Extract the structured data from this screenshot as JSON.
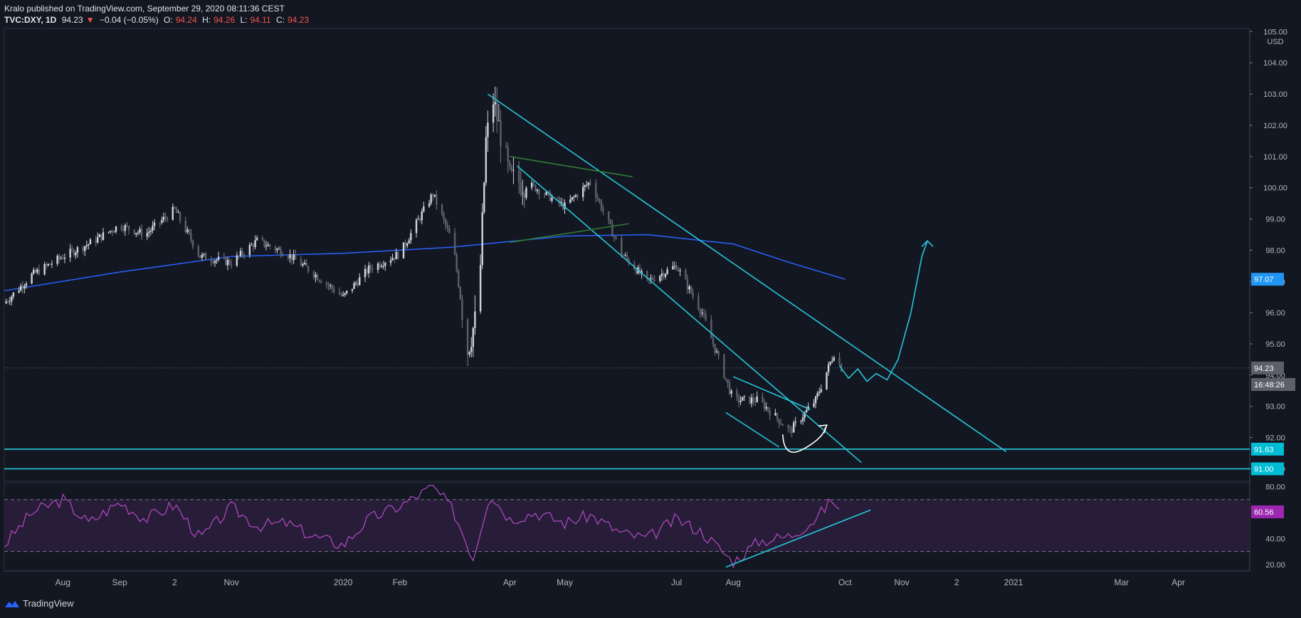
{
  "header": {
    "line1": "Kralo published on TradingView.com, September 29, 2020 08:11:36 CEST",
    "symbol": "TVC:DXY, 1D",
    "last": "94.23",
    "change": "−0.04 (−0.05%)",
    "open_label": "O:",
    "open": "94.24",
    "high_label": "H:",
    "high": "94.26",
    "low_label": "L:",
    "low": "94.11",
    "close_label": "C:",
    "close": "94.23"
  },
  "footer": {
    "brand": "TradingView"
  },
  "colors": {
    "background": "#131722",
    "candle": "#d1d4dc",
    "trendline": "#26c6da",
    "ma": "#2962ff",
    "rsi": "#ab47bc",
    "green_line": "#2e7d32"
  },
  "chart_data": [
    {
      "type": "line",
      "title": "",
      "currency": "USD",
      "y_ticks": [
        "105.00",
        "104.00",
        "103.00",
        "102.00",
        "101.00",
        "100.00",
        "99.00",
        "98.00",
        "97.00",
        "96.00",
        "95.00",
        "94.00",
        "93.00",
        "92.00",
        "91.00"
      ],
      "ylim": [
        90.6,
        105.1
      ],
      "x_ticks": [
        "Aug",
        "Sep",
        "2",
        "Nov",
        "2020",
        "Feb",
        "Apr",
        "May",
        "Jul",
        "Aug",
        "Oct",
        "Nov",
        "2",
        "2021",
        "Mar",
        "Apr"
      ],
      "xlim": [
        "2019-06-30",
        "2021-05-10"
      ],
      "price_labels": [
        {
          "text": "97.07",
          "value": 97.07,
          "color": "#2196f3"
        },
        {
          "text": "94.23",
          "value": 94.23,
          "color": "#5d606b"
        },
        {
          "text": "16:48:26",
          "value": 93.7,
          "color": "#5d606b"
        },
        {
          "text": "91.63",
          "value": 91.63,
          "color": "#00bcd4"
        },
        {
          "text": "91.00",
          "value": 91.0,
          "color": "#00bcd4"
        }
      ],
      "series": [
        {
          "name": "",
          "x": [
            "2019-06-30",
            "2019-07-15",
            "2019-08-01",
            "2019-08-15",
            "2019-09-01",
            "2019-09-15",
            "2019-10-01",
            "2019-10-15",
            "2019-11-01",
            "2019-11-15",
            "2019-12-01",
            "2019-12-15",
            "2020-01-01",
            "2020-01-15",
            "2020-02-01",
            "2020-02-19",
            "2020-03-01",
            "2020-03-09",
            "2020-03-15",
            "2020-03-19",
            "2020-03-23",
            "2020-04-01",
            "2020-04-15",
            "2020-05-01",
            "2020-05-15",
            "2020-06-01",
            "2020-06-15",
            "2020-07-01",
            "2020-07-15",
            "2020-08-01",
            "2020-08-15",
            "2020-09-01",
            "2020-09-15",
            "2020-09-25",
            "2020-09-29"
          ],
          "values": [
            96.3,
            97.2,
            97.8,
            98.2,
            98.8,
            98.5,
            99.3,
            97.8,
            97.6,
            98.3,
            97.9,
            97.3,
            96.5,
            97.4,
            97.9,
            99.8,
            98.2,
            94.8,
            96.2,
            101.5,
            102.8,
            100.3,
            100.0,
            99.4,
            100.2,
            97.9,
            97.0,
            97.5,
            96.0,
            93.2,
            93.2,
            92.2,
            93.2,
            94.7,
            94.23
          ]
        },
        {
          "name": "",
          "x": [
            "2019-06-30",
            "2019-09-01",
            "2019-11-01",
            "2020-01-01",
            "2020-03-01",
            "2020-05-01",
            "2020-06-15",
            "2020-08-01",
            "2020-09-01",
            "2020-10-01"
          ],
          "values": [
            96.7,
            97.3,
            97.8,
            97.9,
            98.1,
            98.45,
            98.5,
            98.2,
            97.6,
            97.07
          ]
        }
      ],
      "annotations": [
        {
          "type": "trendline",
          "from": [
            "2020-03-20",
            103.0
          ],
          "to": [
            "2020-12-28",
            91.55
          ]
        },
        {
          "type": "trendline",
          "from": [
            "2020-04-05",
            100.7
          ],
          "to": [
            "2020-10-10",
            91.2
          ]
        },
        {
          "type": "horizontal",
          "value": 91.63
        },
        {
          "type": "horizontal",
          "value": 91.0
        },
        {
          "type": "trendline",
          "from": [
            "2020-07-28",
            92.8
          ],
          "to": [
            "2020-08-26",
            91.7
          ]
        },
        {
          "type": "trendline",
          "from": [
            "2020-08-01",
            93.95
          ],
          "to": [
            "2020-09-12",
            92.9
          ]
        },
        {
          "type": "trendline",
          "from": [
            "2020-04-01",
            101.0
          ],
          "to": [
            "2020-06-07",
            100.35
          ]
        },
        {
          "type": "trendline",
          "from": [
            "2020-04-01",
            98.25
          ],
          "to": [
            "2020-06-05",
            98.85
          ]
        }
      ]
    },
    {
      "type": "line",
      "title": "",
      "y_ticks": [
        "80.00",
        "60.56",
        "40.00",
        "20.00"
      ],
      "ylim": [
        15,
        83
      ],
      "levels": [
        70,
        30
      ],
      "last_value": 60.56,
      "series": [
        {
          "name": "",
          "x": [
            "2019-06-30",
            "2019-07-15",
            "2019-08-01",
            "2019-08-15",
            "2019-09-01",
            "2019-09-15",
            "2019-10-01",
            "2019-10-15",
            "2019-11-01",
            "2019-11-15",
            "2019-12-01",
            "2019-12-15",
            "2020-01-01",
            "2020-01-15",
            "2020-02-01",
            "2020-02-19",
            "2020-03-01",
            "2020-03-12",
            "2020-03-21",
            "2020-04-01",
            "2020-04-15",
            "2020-05-01",
            "2020-05-15",
            "2020-06-01",
            "2020-06-15",
            "2020-07-01",
            "2020-07-15",
            "2020-08-01",
            "2020-08-15",
            "2020-09-01",
            "2020-09-15",
            "2020-09-24",
            "2020-09-29"
          ],
          "values": [
            35,
            60,
            70,
            52,
            68,
            55,
            66,
            40,
            64,
            50,
            52,
            42,
            35,
            55,
            65,
            80,
            62,
            25,
            75,
            55,
            60,
            52,
            58,
            44,
            40,
            55,
            45,
            22,
            38,
            42,
            55,
            70,
            60.56
          ]
        }
      ],
      "annotations": [
        {
          "type": "trendline",
          "from": [
            "2020-07-28",
            18
          ],
          "to": [
            "2020-10-15",
            62
          ]
        }
      ]
    }
  ]
}
